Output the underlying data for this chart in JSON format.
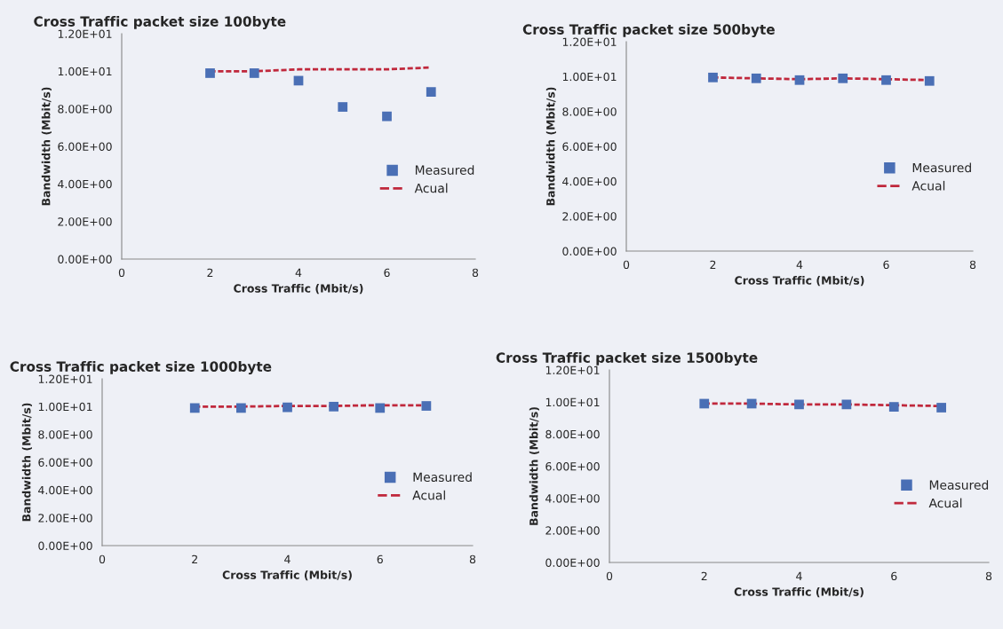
{
  "chart_data": [
    {
      "type": "scatter",
      "title": "Cross Traffic packet size 100byte",
      "xlabel": "Cross Traffic (Mbit/s)",
      "ylabel": "Bandwidth (Mbit/s)",
      "x": [
        2,
        3,
        4,
        5,
        6,
        7
      ],
      "xlim": [
        0,
        8
      ],
      "xticks": [
        0,
        2,
        4,
        6,
        8
      ],
      "ylim": [
        0,
        12
      ],
      "yticks": [
        {
          "value": 0,
          "label": "0.00E+00"
        },
        {
          "value": 2,
          "label": "2.00E+00"
        },
        {
          "value": 4,
          "label": "4.00E+00"
        },
        {
          "value": 6,
          "label": "6.00E+00"
        },
        {
          "value": 8,
          "label": "8.00E+00"
        },
        {
          "value": 10,
          "label": "1.00E+01"
        },
        {
          "value": 12,
          "label": "1.20E+01"
        }
      ],
      "grid": false,
      "legend": "right",
      "series": [
        {
          "name": "Measured",
          "marker": "square",
          "color": "#4a6fb5",
          "values": [
            9.9,
            9.9,
            9.5,
            8.1,
            7.6,
            8.9
          ]
        },
        {
          "name": "Acual",
          "type": "line",
          "color": "#c0283c",
          "line_style": "dashed",
          "values": [
            10.0,
            10.0,
            10.1,
            10.1,
            10.1,
            10.2
          ]
        }
      ]
    },
    {
      "type": "scatter",
      "title": "Cross Traffic packet size 500byte",
      "xlabel": "Cross Traffic (Mbit/s)",
      "ylabel": "Bandwidth (Mbit/s)",
      "x": [
        2,
        3,
        4,
        5,
        6,
        7
      ],
      "xlim": [
        0,
        8
      ],
      "xticks": [
        0,
        2,
        4,
        6,
        8
      ],
      "ylim": [
        0,
        12
      ],
      "yticks": [
        {
          "value": 0,
          "label": "0.00E+00"
        },
        {
          "value": 2,
          "label": "2.00E+00"
        },
        {
          "value": 4,
          "label": "4.00E+00"
        },
        {
          "value": 6,
          "label": "6.00E+00"
        },
        {
          "value": 8,
          "label": "8.00E+00"
        },
        {
          "value": 10,
          "label": "1.00E+01"
        },
        {
          "value": 12,
          "label": "1.20E+01"
        }
      ],
      "grid": false,
      "legend": "right",
      "series": [
        {
          "name": "Measured",
          "marker": "square",
          "color": "#4a6fb5",
          "values": [
            9.95,
            9.9,
            9.8,
            9.9,
            9.8,
            9.75
          ]
        },
        {
          "name": "Acual",
          "type": "line",
          "color": "#c0283c",
          "line_style": "dashed",
          "values": [
            9.95,
            9.9,
            9.85,
            9.9,
            9.85,
            9.8
          ]
        }
      ]
    },
    {
      "type": "scatter",
      "title": "Cross Traffic packet size 1000byte",
      "xlabel": "Cross Traffic (Mbit/s)",
      "ylabel": "Bandwidth (Mbit/s)",
      "x": [
        2,
        3,
        4,
        5,
        6,
        7
      ],
      "xlim": [
        0,
        8
      ],
      "xticks": [
        0,
        2,
        4,
        6,
        8
      ],
      "ylim": [
        0,
        12
      ],
      "yticks": [
        {
          "value": 0,
          "label": "0.00E+00"
        },
        {
          "value": 2,
          "label": "2.00E+00"
        },
        {
          "value": 4,
          "label": "4.00E+00"
        },
        {
          "value": 6,
          "label": "6.00E+00"
        },
        {
          "value": 8,
          "label": "8.00E+00"
        },
        {
          "value": 10,
          "label": "1.00E+01"
        },
        {
          "value": 12,
          "label": "1.20E+01"
        }
      ],
      "grid": false,
      "legend": "right",
      "series": [
        {
          "name": "Measured",
          "marker": "square",
          "color": "#4a6fb5",
          "values": [
            9.9,
            9.9,
            9.95,
            10.0,
            9.9,
            10.05
          ]
        },
        {
          "name": "Acual",
          "type": "line",
          "color": "#c0283c",
          "line_style": "dashed",
          "values": [
            10.0,
            10.0,
            10.05,
            10.05,
            10.1,
            10.1
          ]
        }
      ]
    },
    {
      "type": "scatter",
      "title": "Cross Traffic packet size 1500byte",
      "xlabel": "Cross Traffic (Mbit/s)",
      "ylabel": "Bandwidth (Mbit/s)",
      "x": [
        2,
        3,
        4,
        5,
        6,
        7
      ],
      "xlim": [
        0,
        8
      ],
      "xticks": [
        0,
        2,
        4,
        6,
        8
      ],
      "ylim": [
        0,
        12
      ],
      "yticks": [
        {
          "value": 0,
          "label": "0.00E+00"
        },
        {
          "value": 2,
          "label": "2.00E+00"
        },
        {
          "value": 4,
          "label": "4.00E+00"
        },
        {
          "value": 6,
          "label": "6.00E+00"
        },
        {
          "value": 8,
          "label": "8.00E+00"
        },
        {
          "value": 10,
          "label": "1.00E+01"
        },
        {
          "value": 12,
          "label": "1.20E+01"
        }
      ],
      "grid": false,
      "legend": "right",
      "series": [
        {
          "name": "Measured",
          "marker": "square",
          "color": "#4a6fb5",
          "values": [
            9.9,
            9.9,
            9.85,
            9.85,
            9.7,
            9.65
          ]
        },
        {
          "name": "Acual",
          "type": "line",
          "color": "#c0283c",
          "line_style": "dashed",
          "values": [
            9.9,
            9.9,
            9.85,
            9.85,
            9.8,
            9.75
          ]
        }
      ]
    }
  ]
}
